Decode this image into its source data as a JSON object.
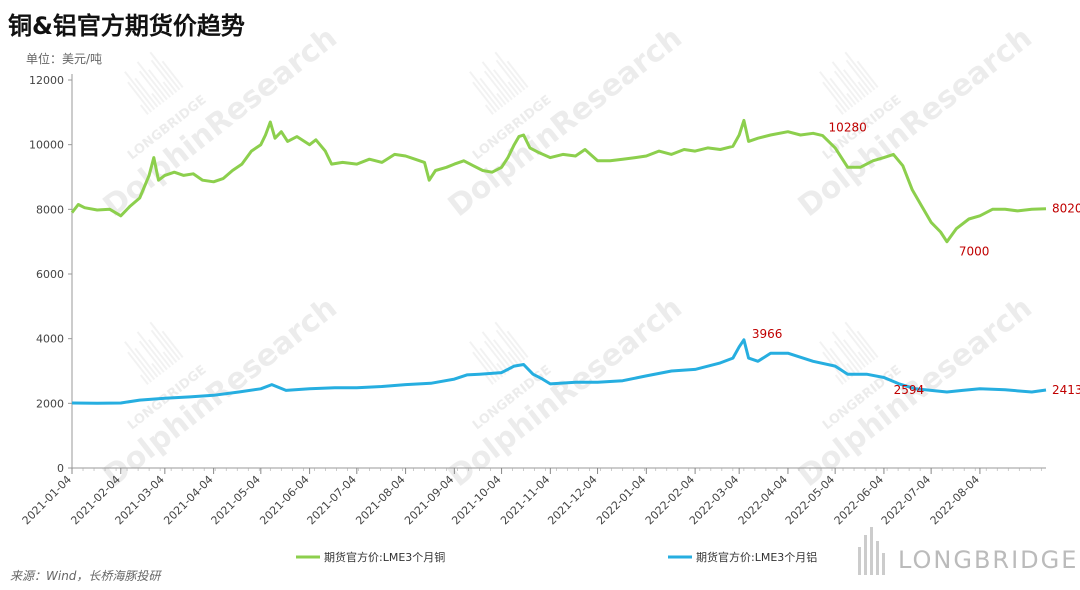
{
  "title": "铜&铝官方期货价趋势",
  "unit": "单位：美元/吨",
  "source": "来源：Wind，长桥海豚投研",
  "watermark_text": "DolphinResearch",
  "watermark_brand": "LONGBRIDGE",
  "brand": "LONGBRIDGE",
  "chart_data": {
    "type": "line",
    "ylim": [
      0,
      12000
    ],
    "yticks": [
      "0",
      "2000",
      "4000",
      "6000",
      "8000",
      "10000",
      "12000"
    ],
    "x_start": "2021-01-04",
    "x_end": "2022-09-15",
    "xticks": [
      "2021-01-04",
      "2021-02-04",
      "2021-03-04",
      "2021-04-04",
      "2021-05-04",
      "2021-06-04",
      "2021-07-04",
      "2021-08-04",
      "2021-09-04",
      "2021-10-04",
      "2021-11-04",
      "2021-12-04",
      "2022-01-04",
      "2022-02-04",
      "2022-03-04",
      "2022-04-04",
      "2022-05-04",
      "2022-06-04",
      "2022-07-04",
      "2022-08-04"
    ],
    "legend_position": "bottom",
    "series": [
      {
        "name": "期货官方价:LME3个月铜",
        "color": "#8ccf4d",
        "points": [
          [
            "2021-01-04",
            7900
          ],
          [
            "2021-01-08",
            8150
          ],
          [
            "2021-01-12",
            8050
          ],
          [
            "2021-01-20",
            7980
          ],
          [
            "2021-01-28",
            8000
          ],
          [
            "2021-02-04",
            7800
          ],
          [
            "2021-02-10",
            8100
          ],
          [
            "2021-02-16",
            8350
          ],
          [
            "2021-02-22",
            9050
          ],
          [
            "2021-02-25",
            9600
          ],
          [
            "2021-02-28",
            8900
          ],
          [
            "2021-03-04",
            9050
          ],
          [
            "2021-03-10",
            9150
          ],
          [
            "2021-03-16",
            9050
          ],
          [
            "2021-03-22",
            9100
          ],
          [
            "2021-03-28",
            8900
          ],
          [
            "2021-04-04",
            8850
          ],
          [
            "2021-04-10",
            8950
          ],
          [
            "2021-04-16",
            9200
          ],
          [
            "2021-04-22",
            9400
          ],
          [
            "2021-04-28",
            9800
          ],
          [
            "2021-05-04",
            10000
          ],
          [
            "2021-05-07",
            10300
          ],
          [
            "2021-05-10",
            10700
          ],
          [
            "2021-05-13",
            10200
          ],
          [
            "2021-05-17",
            10400
          ],
          [
            "2021-05-21",
            10100
          ],
          [
            "2021-05-27",
            10250
          ],
          [
            "2021-06-04",
            10000
          ],
          [
            "2021-06-08",
            10150
          ],
          [
            "2021-06-14",
            9800
          ],
          [
            "2021-06-18",
            9400
          ],
          [
            "2021-06-25",
            9450
          ],
          [
            "2021-07-04",
            9400
          ],
          [
            "2021-07-12",
            9550
          ],
          [
            "2021-07-20",
            9450
          ],
          [
            "2021-07-28",
            9700
          ],
          [
            "2021-08-04",
            9650
          ],
          [
            "2021-08-10",
            9550
          ],
          [
            "2021-08-16",
            9450
          ],
          [
            "2021-08-19",
            8900
          ],
          [
            "2021-08-23",
            9200
          ],
          [
            "2021-08-30",
            9300
          ],
          [
            "2021-09-04",
            9400
          ],
          [
            "2021-09-10",
            9500
          ],
          [
            "2021-09-16",
            9350
          ],
          [
            "2021-09-22",
            9200
          ],
          [
            "2021-09-28",
            9150
          ],
          [
            "2021-10-04",
            9300
          ],
          [
            "2021-10-08",
            9600
          ],
          [
            "2021-10-12",
            10000
          ],
          [
            "2021-10-15",
            10250
          ],
          [
            "2021-10-18",
            10300
          ],
          [
            "2021-10-22",
            9900
          ],
          [
            "2021-10-28",
            9750
          ],
          [
            "2021-11-04",
            9600
          ],
          [
            "2021-11-12",
            9700
          ],
          [
            "2021-11-20",
            9650
          ],
          [
            "2021-11-26",
            9850
          ],
          [
            "2021-12-04",
            9500
          ],
          [
            "2021-12-12",
            9500
          ],
          [
            "2021-12-20",
            9550
          ],
          [
            "2021-12-28",
            9600
          ],
          [
            "2022-01-04",
            9650
          ],
          [
            "2022-01-12",
            9800
          ],
          [
            "2022-01-20",
            9700
          ],
          [
            "2022-01-28",
            9850
          ],
          [
            "2022-02-04",
            9800
          ],
          [
            "2022-02-12",
            9900
          ],
          [
            "2022-02-20",
            9850
          ],
          [
            "2022-02-28",
            9950
          ],
          [
            "2022-03-04",
            10300
          ],
          [
            "2022-03-07",
            10750
          ],
          [
            "2022-03-10",
            10100
          ],
          [
            "2022-03-16",
            10200
          ],
          [
            "2022-03-24",
            10300
          ],
          [
            "2022-04-04",
            10400
          ],
          [
            "2022-04-12",
            10300
          ],
          [
            "2022-04-20",
            10350
          ],
          [
            "2022-04-26",
            10280
          ],
          [
            "2022-05-04",
            9900
          ],
          [
            "2022-05-12",
            9300
          ],
          [
            "2022-05-20",
            9300
          ],
          [
            "2022-05-28",
            9500
          ],
          [
            "2022-06-04",
            9600
          ],
          [
            "2022-06-10",
            9700
          ],
          [
            "2022-06-16",
            9350
          ],
          [
            "2022-06-22",
            8600
          ],
          [
            "2022-06-28",
            8100
          ],
          [
            "2022-07-04",
            7600
          ],
          [
            "2022-07-10",
            7300
          ],
          [
            "2022-07-14",
            7000
          ],
          [
            "2022-07-20",
            7400
          ],
          [
            "2022-07-28",
            7700
          ],
          [
            "2022-08-04",
            7800
          ],
          [
            "2022-08-12",
            8000
          ],
          [
            "2022-08-20",
            8000
          ],
          [
            "2022-08-28",
            7950
          ],
          [
            "2022-09-06",
            8000
          ],
          [
            "2022-09-15",
            8020
          ]
        ]
      },
      {
        "name": "期货官方价:LME3个月铝",
        "color": "#26aee0",
        "points": [
          [
            "2021-01-04",
            2010
          ],
          [
            "2021-01-20",
            2000
          ],
          [
            "2021-02-04",
            2010
          ],
          [
            "2021-02-16",
            2100
          ],
          [
            "2021-03-04",
            2160
          ],
          [
            "2021-03-20",
            2200
          ],
          [
            "2021-04-04",
            2250
          ],
          [
            "2021-04-20",
            2350
          ],
          [
            "2021-05-04",
            2450
          ],
          [
            "2021-05-11",
            2580
          ],
          [
            "2021-05-20",
            2400
          ],
          [
            "2021-06-04",
            2450
          ],
          [
            "2021-06-20",
            2480
          ],
          [
            "2021-07-04",
            2480
          ],
          [
            "2021-07-20",
            2520
          ],
          [
            "2021-08-04",
            2580
          ],
          [
            "2021-08-20",
            2620
          ],
          [
            "2021-09-04",
            2750
          ],
          [
            "2021-09-12",
            2880
          ],
          [
            "2021-09-20",
            2900
          ],
          [
            "2021-10-04",
            2950
          ],
          [
            "2021-10-12",
            3150
          ],
          [
            "2021-10-18",
            3200
          ],
          [
            "2021-10-24",
            2900
          ],
          [
            "2021-10-30",
            2750
          ],
          [
            "2021-11-04",
            2600
          ],
          [
            "2021-11-20",
            2650
          ],
          [
            "2021-12-04",
            2650
          ],
          [
            "2021-12-20",
            2700
          ],
          [
            "2022-01-04",
            2850
          ],
          [
            "2022-01-20",
            3000
          ],
          [
            "2022-02-04",
            3050
          ],
          [
            "2022-02-20",
            3250
          ],
          [
            "2022-02-28",
            3400
          ],
          [
            "2022-03-04",
            3750
          ],
          [
            "2022-03-07",
            3966
          ],
          [
            "2022-03-10",
            3400
          ],
          [
            "2022-03-16",
            3300
          ],
          [
            "2022-03-24",
            3550
          ],
          [
            "2022-04-04",
            3550
          ],
          [
            "2022-04-20",
            3300
          ],
          [
            "2022-05-04",
            3150
          ],
          [
            "2022-05-12",
            2900
          ],
          [
            "2022-05-24",
            2900
          ],
          [
            "2022-06-04",
            2800
          ],
          [
            "2022-06-14",
            2594
          ],
          [
            "2022-06-24",
            2450
          ],
          [
            "2022-07-04",
            2400
          ],
          [
            "2022-07-14",
            2350
          ],
          [
            "2022-07-24",
            2400
          ],
          [
            "2022-08-04",
            2450
          ],
          [
            "2022-08-20",
            2420
          ],
          [
            "2022-09-06",
            2350
          ],
          [
            "2022-09-15",
            2413
          ]
        ]
      }
    ],
    "annotations": [
      {
        "series": 0,
        "date": "2022-04-26",
        "value": 10280,
        "label": "10280"
      },
      {
        "series": 0,
        "date": "2022-07-14",
        "value": 7000,
        "label": "7000"
      },
      {
        "series": 0,
        "date": "2022-09-15",
        "value": 8020,
        "label": "8020"
      },
      {
        "series": 1,
        "date": "2022-03-07",
        "value": 3966,
        "label": "3966"
      },
      {
        "series": 1,
        "date": "2022-06-14",
        "value": 2594,
        "label": "2594"
      },
      {
        "series": 1,
        "date": "2022-09-15",
        "value": 2413,
        "label": "2413"
      }
    ],
    "annotation_color": "#c00000"
  }
}
